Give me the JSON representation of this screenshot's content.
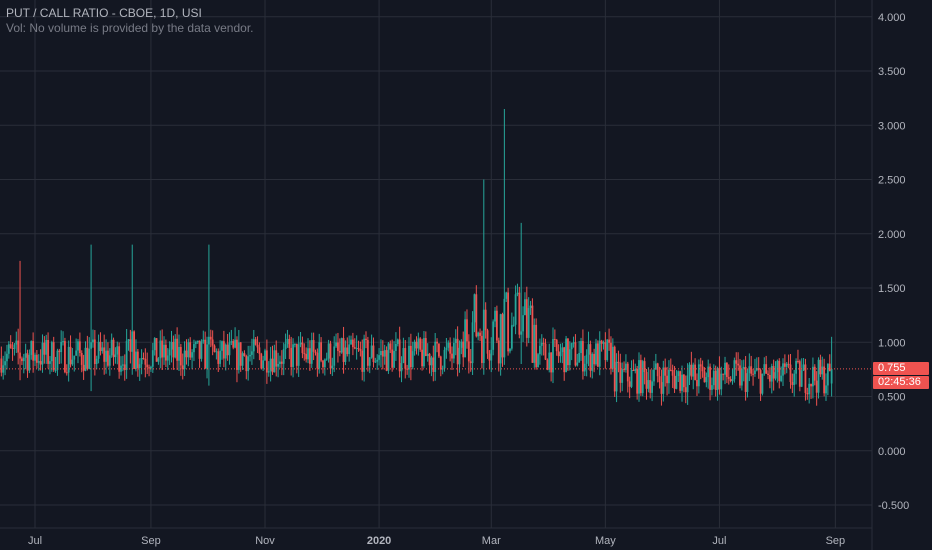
{
  "legend": {
    "title": "PUT / CALL RATIO - CBOE, 1D, USI",
    "vol": "Vol: No volume is provided by the data vendor."
  },
  "price_tag": "0.755",
  "time_tag": "02:45:36",
  "colors": {
    "background": "#131722",
    "up": "#26a69a",
    "down": "#ef5350",
    "grid": "#2a2e39"
  },
  "chart_data": {
    "type": "candlestick",
    "title": "PUT / CALL RATIO - CBOE, 1D, USI",
    "y_ticks": [
      "4.000",
      "3.500",
      "3.000",
      "2.500",
      "2.000",
      "1.500",
      "1.000",
      "0.500",
      "0.000",
      "-0.500"
    ],
    "y_tick_values": [
      4,
      3.5,
      3,
      2.5,
      2,
      1.5,
      1,
      0.5,
      0,
      -0.5
    ],
    "x_ticks": [
      {
        "label": "Jul",
        "day": 0,
        "bold": false
      },
      {
        "label": "Sep",
        "day": 62,
        "bold": false
      },
      {
        "label": "Nov",
        "day": 123,
        "bold": false
      },
      {
        "label": "2020",
        "day": 184,
        "bold": true
      },
      {
        "label": "Mar",
        "day": 244,
        "bold": false
      },
      {
        "label": "May",
        "day": 305,
        "bold": false
      },
      {
        "label": "Jul",
        "day": 366,
        "bold": false
      },
      {
        "label": "Sep",
        "day": 428,
        "bold": false
      }
    ],
    "last_value": 0.755,
    "up_color": "#26a69a",
    "down_color": "#ef5350",
    "daily_candles_approx": {
      "date_format": "day offset from Jul 1 (2019)",
      "series": [
        {
          "day": -8,
          "value": 0.85,
          "high": 1.75,
          "low": 0.65
        },
        {
          "day": 30,
          "value": 1.0,
          "high": 1.9,
          "low": 0.55
        },
        {
          "day": 52,
          "value": 1.1,
          "high": 1.9,
          "low": 0.7
        },
        {
          "day": 93,
          "value": 1.05,
          "high": 1.9,
          "low": 0.6
        },
        {
          "day": 240,
          "value": 1.3,
          "high": 2.5,
          "low": 0.7
        },
        {
          "day": 251,
          "value": 1.4,
          "high": 3.15,
          "low": 0.8
        },
        {
          "day": 260,
          "value": 1.1,
          "high": 2.1,
          "low": 0.8
        },
        {
          "day": 426,
          "value": 0.755,
          "high": 1.05,
          "low": 0.5
        }
      ]
    }
  }
}
